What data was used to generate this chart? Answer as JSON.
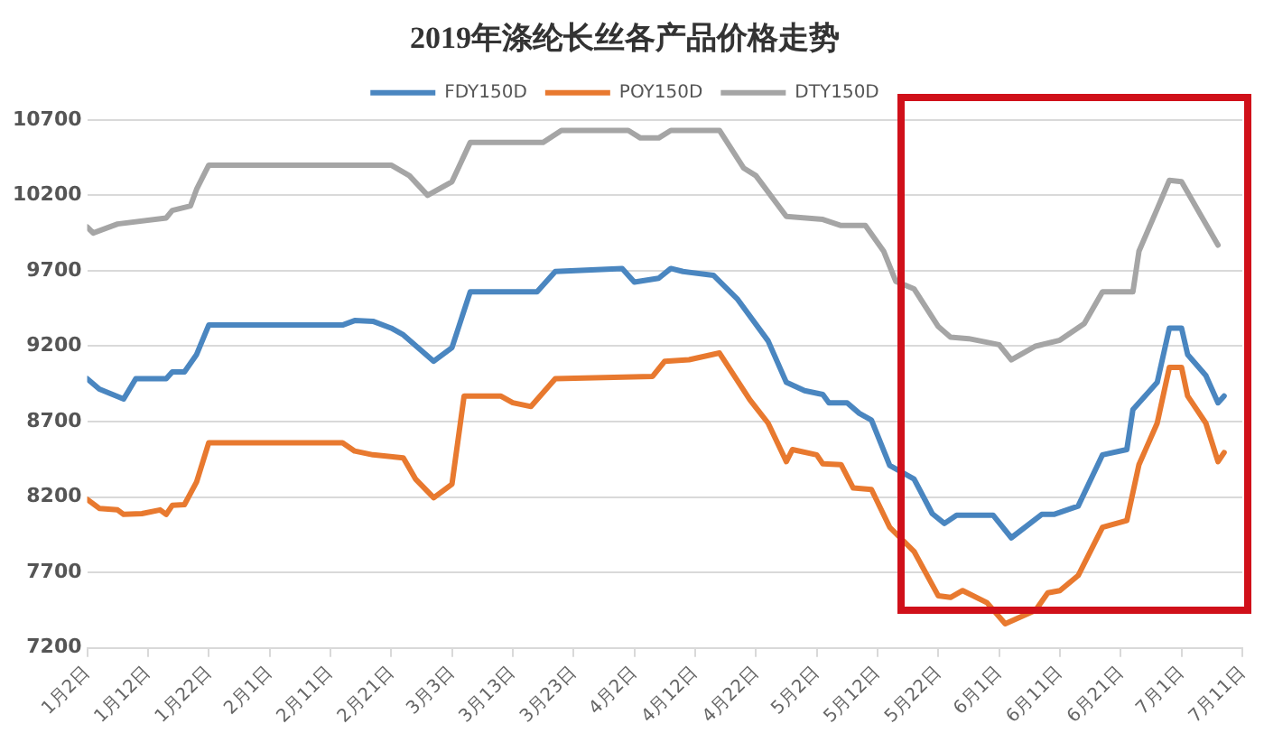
{
  "chart_data": {
    "type": "line",
    "title": "2019年涤纶长丝各产品价格走势",
    "xlim": [
      "--01-02",
      "--07-11"
    ],
    "xticks": [
      {
        "value": "--01-02",
        "label": "1月2日"
      },
      {
        "value": "--01-12",
        "label": "1月12日"
      },
      {
        "value": "--01-22",
        "label": "1月22日"
      },
      {
        "value": "--02-01",
        "label": "2月1日"
      },
      {
        "value": "--02-11",
        "label": "2月11日"
      },
      {
        "value": "--02-21",
        "label": "2月21日"
      },
      {
        "value": "--03-03",
        "label": "3月3日"
      },
      {
        "value": "--03-13",
        "label": "3月13日"
      },
      {
        "value": "--03-23",
        "label": "3月23日"
      },
      {
        "value": "--04-02",
        "label": "4月2日"
      },
      {
        "value": "--04-12",
        "label": "4月12日"
      },
      {
        "value": "--04-22",
        "label": "4月22日"
      },
      {
        "value": "--05-02",
        "label": "5月2日"
      },
      {
        "value": "--05-12",
        "label": "5月12日"
      },
      {
        "value": "--05-22",
        "label": "5月22日"
      },
      {
        "value": "--06-01",
        "label": "6月1日"
      },
      {
        "value": "--06-11",
        "label": "6月11日"
      },
      {
        "value": "--06-21",
        "label": "6月21日"
      },
      {
        "value": "--07-01",
        "label": "7月1日"
      },
      {
        "value": "--07-11",
        "label": "7月11日"
      }
    ],
    "ylim": [
      7200,
      10700
    ],
    "yticks": [
      7200,
      7700,
      8200,
      8700,
      9200,
      9700,
      10200,
      10700
    ],
    "grid": "y",
    "legend": "top",
    "marker": "none",
    "line_style": "solid",
    "series": [
      {
        "name": "FDY150D",
        "color": "#4a86c0",
        "x": [
          "--01-02",
          "--01-04",
          "--01-08",
          "--01-10",
          "--01-15",
          "--01-16",
          "--01-18",
          "--01-20",
          "--01-22",
          "--02-13",
          "--02-15",
          "--02-18",
          "--02-21",
          "--02-23",
          "--02-28",
          "--03-03",
          "--03-06",
          "--03-17",
          "--03-20",
          "--03-31",
          "--04-02",
          "--04-06",
          "--04-08",
          "--04-10",
          "--04-15",
          "--04-19",
          "--04-24",
          "--04-27",
          "--04-30",
          "--05-03",
          "--05-04",
          "--05-07",
          "--05-09",
          "--05-11",
          "--05-14",
          "--05-18",
          "--05-21",
          "--05-23",
          "--05-25",
          "--05-31",
          "--06-03",
          "--06-08",
          "--06-10",
          "--06-14",
          "--06-18",
          "--06-22",
          "--06-23",
          "--06-27",
          "--06-29",
          "--07-01",
          "--07-02",
          "--07-05",
          "--07-07",
          "--07-08"
        ],
        "values": [
          8985,
          8916,
          8850,
          8985,
          8985,
          9030,
          9030,
          9145,
          9340,
          9340,
          9370,
          9365,
          9320,
          9275,
          9100,
          9190,
          9560,
          9560,
          9695,
          9715,
          9625,
          9650,
          9715,
          9695,
          9670,
          9510,
          9235,
          8960,
          8905,
          8880,
          8825,
          8825,
          8755,
          8710,
          8410,
          8320,
          8090,
          8025,
          8080,
          8080,
          7930,
          8085,
          8085,
          8140,
          8480,
          8515,
          8780,
          8960,
          9320,
          9320,
          9145,
          9005,
          8825,
          8870
        ]
      },
      {
        "name": "POY150D",
        "color": "#e8792f",
        "x": [
          "--01-02",
          "--01-04",
          "--01-07",
          "--01-08",
          "--01-11",
          "--01-14",
          "--01-15",
          "--01-16",
          "--01-18",
          "--01-20",
          "--01-22",
          "--02-13",
          "--02-15",
          "--02-18",
          "--02-23",
          "--02-25",
          "--02-28",
          "--03-03",
          "--03-05",
          "--03-11",
          "--03-13",
          "--03-16",
          "--03-20",
          "--04-05",
          "--04-07",
          "--04-11",
          "--04-16",
          "--04-21",
          "--04-24",
          "--04-27",
          "--04-28",
          "--05-02",
          "--05-03",
          "--05-06",
          "--05-08",
          "--05-11",
          "--05-14",
          "--05-18",
          "--05-22",
          "--05-24",
          "--05-26",
          "--05-30",
          "--06-02",
          "--06-07",
          "--06-09",
          "--06-11",
          "--06-14",
          "--06-18",
          "--06-22",
          "--06-24",
          "--06-27",
          "--06-29",
          "--07-01",
          "--07-02",
          "--07-05",
          "--07-07",
          "--07-08"
        ],
        "values": [
          8185,
          8125,
          8115,
          8085,
          8090,
          8115,
          8085,
          8145,
          8150,
          8300,
          8560,
          8560,
          8505,
          8480,
          8460,
          8320,
          8195,
          8285,
          8870,
          8870,
          8825,
          8800,
          8985,
          9000,
          9100,
          9110,
          9155,
          8845,
          8690,
          8435,
          8515,
          8480,
          8420,
          8415,
          8260,
          8250,
          8000,
          7840,
          7545,
          7535,
          7580,
          7500,
          7360,
          7450,
          7565,
          7580,
          7680,
          8000,
          8045,
          8415,
          8690,
          9060,
          9060,
          8870,
          8690,
          8435,
          8495
        ]
      },
      {
        "name": "DTY150D",
        "color": "#a5a5a5",
        "x": [
          "--01-02",
          "--01-03",
          "--01-07",
          "--01-15",
          "--01-16",
          "--01-19",
          "--01-20",
          "--01-22",
          "--02-21",
          "--02-24",
          "--02-27",
          "--03-03",
          "--03-06",
          "--03-18",
          "--03-21",
          "--04-01",
          "--04-03",
          "--04-06",
          "--04-08",
          "--04-16",
          "--04-20",
          "--04-22",
          "--04-27",
          "--05-03",
          "--05-06",
          "--05-10",
          "--05-13",
          "--05-15",
          "--05-18",
          "--05-22",
          "--05-24",
          "--05-27",
          "--06-01",
          "--06-03",
          "--06-07",
          "--06-11",
          "--06-15",
          "--06-18",
          "--06-23",
          "--06-24",
          "--06-27",
          "--06-29",
          "--07-01",
          "--07-04",
          "--07-07"
        ],
        "values": [
          9990,
          9950,
          10010,
          10050,
          10100,
          10130,
          10240,
          10400,
          10400,
          10330,
          10200,
          10290,
          10550,
          10550,
          10630,
          10630,
          10580,
          10580,
          10630,
          10630,
          10380,
          10330,
          10060,
          10040,
          10000,
          10000,
          9830,
          9630,
          9580,
          9330,
          9260,
          9250,
          9210,
          9110,
          9200,
          9240,
          9350,
          9560,
          9560,
          9830,
          10110,
          10300,
          10290,
          10080,
          9870
        ]
      }
    ]
  }
}
